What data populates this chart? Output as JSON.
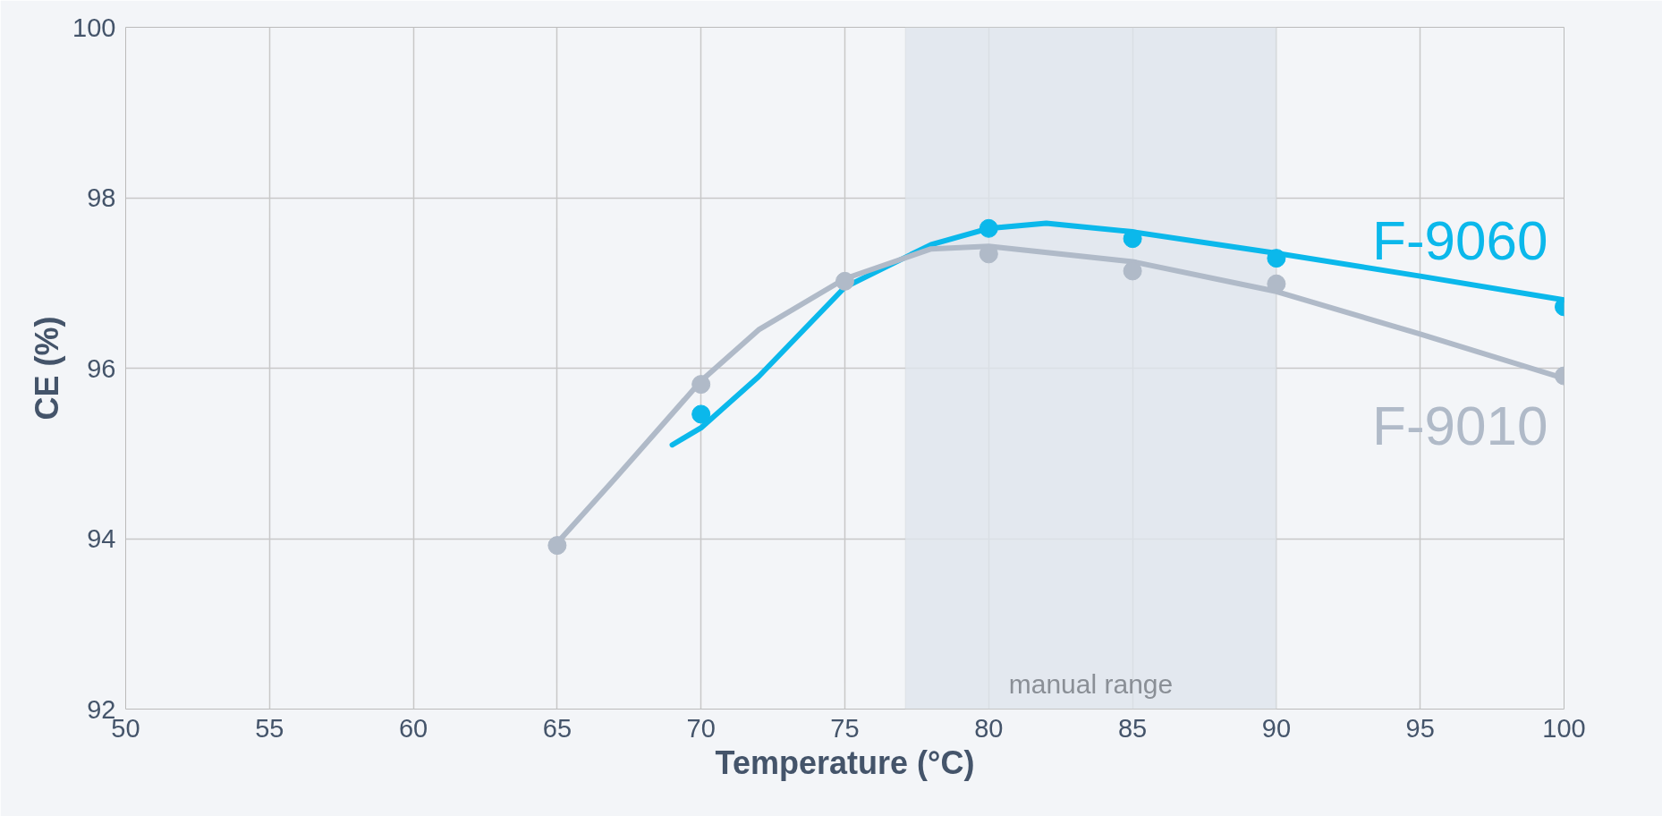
{
  "chart_data": {
    "type": "scatter",
    "xlabel": "Temperature (°C)",
    "ylabel": "CE (%)",
    "xlim": [
      50,
      100
    ],
    "xticks": [
      50,
      55,
      60,
      65,
      70,
      75,
      80,
      85,
      90,
      95,
      100
    ],
    "ylim": [
      92,
      100
    ],
    "yticks": [
      92,
      94,
      96,
      98,
      100
    ],
    "grid": true,
    "series": [
      {
        "name": "F-9060",
        "marker": "circle",
        "color": "#0bb8eb",
        "x": [
          70,
          80,
          85,
          90,
          100
        ],
        "values": [
          95.46,
          97.64,
          97.52,
          97.29,
          96.72
        ]
      },
      {
        "name": "F-9010",
        "marker": "circle",
        "color": "#b0bac8",
        "x": [
          65,
          70,
          75,
          80,
          85,
          90,
          100
        ],
        "values": [
          93.92,
          95.81,
          97.02,
          97.34,
          97.14,
          96.99,
          95.91
        ]
      },
      {
        "type": "line",
        "marker": "none",
        "color": "#0bb8eb",
        "x": [
          69,
          70,
          72,
          75,
          78,
          80,
          82,
          85,
          90,
          95,
          100
        ],
        "values": [
          95.1,
          95.3,
          95.9,
          96.95,
          97.45,
          97.64,
          97.7,
          97.6,
          97.35,
          97.08,
          96.8
        ]
      },
      {
        "type": "line",
        "marker": "none",
        "color": "#b0bac8",
        "x": [
          65,
          67,
          70,
          72,
          75,
          78,
          80,
          85,
          90,
          95,
          100
        ],
        "values": [
          93.95,
          94.7,
          95.85,
          96.45,
          97.05,
          97.4,
          97.43,
          97.25,
          96.9,
          96.4,
          95.88
        ]
      }
    ],
    "bands": [
      {
        "axis": "x",
        "from": 77.1,
        "to": 90,
        "label": "manual range",
        "color": "#dfe5ec"
      }
    ]
  }
}
